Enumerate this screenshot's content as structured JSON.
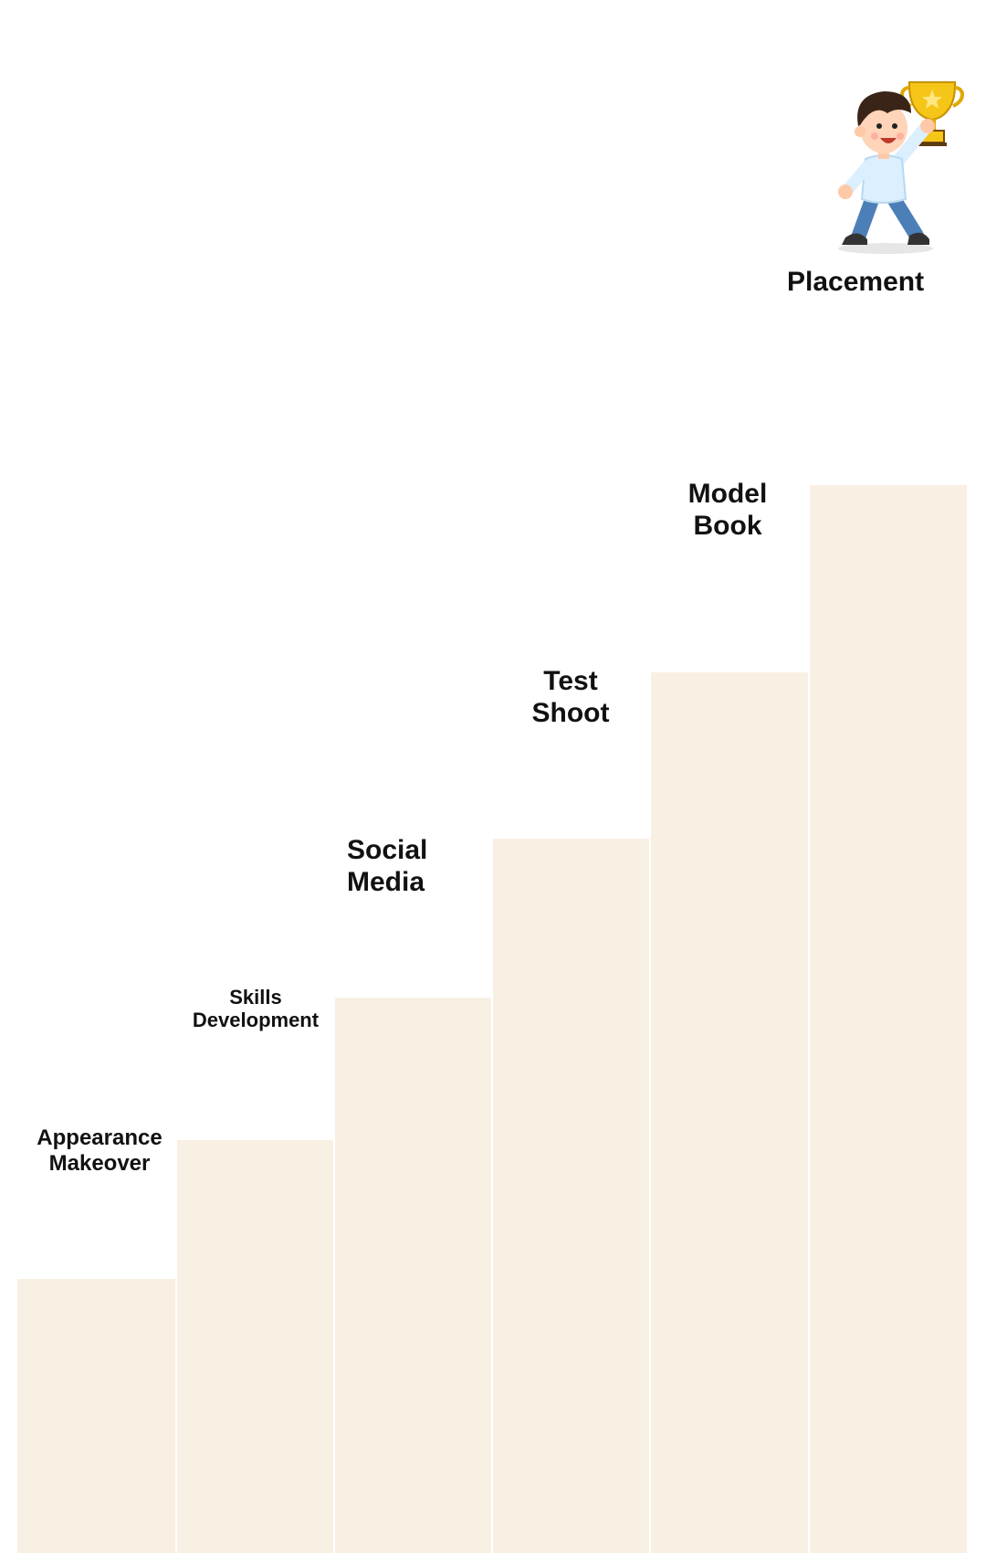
{
  "steps": [
    {
      "line1": "Appearance",
      "line2": "Makeover"
    },
    {
      "line1": "Skills",
      "line2": "Development"
    },
    {
      "line1": "Social",
      "line2": "Media"
    },
    {
      "line1": "Test",
      "line2": "Shoot"
    },
    {
      "line1": "Model",
      "line2": "Book"
    },
    {
      "line1": "Placement",
      "line2": ""
    }
  ],
  "colors": {
    "stair": "#f9f0e4",
    "text": "#111111",
    "trophy": "#f5c518"
  },
  "icons": {
    "illustration": "boy-holding-trophy-icon",
    "trophy": "trophy-icon"
  }
}
